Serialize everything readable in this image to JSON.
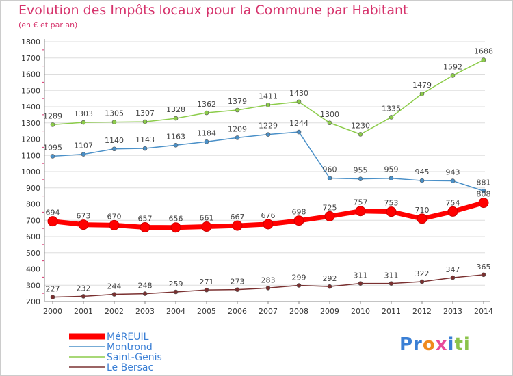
{
  "colors": {
    "title": "#d6336c",
    "axis": "#888888",
    "grid": "#dddddd"
  },
  "brand": {
    "logo_text": "Proxiti"
  },
  "chart_data": {
    "type": "line",
    "title": "Evolution des Impôts locaux pour la Commune par Habitant",
    "subtitle": "(en € et par an)",
    "xlabel": "",
    "ylabel": "",
    "ylim": [
      200,
      1800
    ],
    "yticks": [
      200,
      300,
      400,
      500,
      600,
      700,
      800,
      900,
      1000,
      1100,
      1200,
      1300,
      1400,
      1500,
      1600,
      1700,
      1800
    ],
    "categories": [
      "2000",
      "2001",
      "2002",
      "2003",
      "2004",
      "2005",
      "2006",
      "2007",
      "2008",
      "2009",
      "2010",
      "2011",
      "2012",
      "2013",
      "2014"
    ],
    "legend_position": "bottom-left",
    "series": [
      {
        "name": "MéREUIL",
        "color": "#ff0000",
        "values": [
          694,
          673,
          670,
          657,
          656,
          661,
          667,
          676,
          698,
          725,
          757,
          753,
          710,
          754,
          808
        ]
      },
      {
        "name": "Montrond",
        "color": "#4a90c8",
        "values": [
          1095,
          1107,
          1140,
          1143,
          1163,
          1184,
          1209,
          1229,
          1244,
          960,
          955,
          959,
          945,
          943,
          881
        ]
      },
      {
        "name": "Saint-Genis",
        "color": "#8ccc4a",
        "values": [
          1289,
          1303,
          1305,
          1307,
          1328,
          1362,
          1379,
          1411,
          1430,
          1300,
          1230,
          1335,
          1479,
          1592,
          1688
        ]
      },
      {
        "name": "Le Bersac",
        "color": "#7a3030",
        "values": [
          227,
          232,
          244,
          248,
          259,
          271,
          273,
          283,
          299,
          292,
          311,
          311,
          322,
          347,
          365
        ]
      }
    ]
  }
}
